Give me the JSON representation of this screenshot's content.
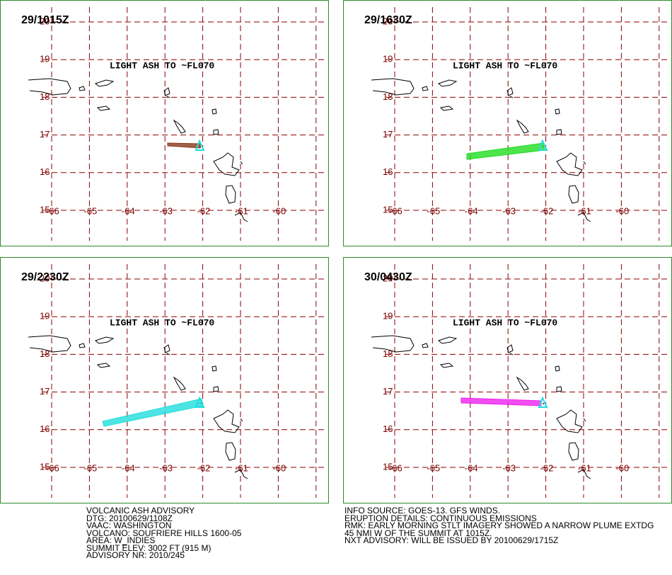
{
  "grid": {
    "lat_labels": [
      "20",
      "19",
      "18",
      "17",
      "16",
      "15"
    ],
    "lon_labels": [
      "-66",
      "-65",
      "-64",
      "-63",
      "-62",
      "-61",
      "-60"
    ]
  },
  "panels": [
    {
      "time": "29/1015Z",
      "annotation": "LIGHT ASH TO ~FL070"
    },
    {
      "time": "29/1630Z",
      "annotation": "LIGHT ASH TO ~FL070"
    },
    {
      "time": "29/2230Z",
      "annotation": "LIGHT ASH TO ~FL070"
    },
    {
      "time": "30/0430Z",
      "annotation": "LIGHT ASH TO ~FL070"
    }
  ],
  "advisory_left": [
    "VOLCANIC ASH ADVISORY",
    "DTG: 20100629/1108Z",
    "VAAC: WASHINGTON",
    "VOLCANO: SOUFRIERE HILLS 1600-05",
    "AREA: W_INDIES",
    "SUMMIT ELEV: 3002 FT (915 M)",
    "ADVISORY NR: 2010/245"
  ],
  "advisory_right": [
    "INFO SOURCE: GOES-13. GFS WINDS.",
    "ERUPTION DETAILS: CONTINUOUS EMISSIONS",
    "RMK: EARLY MORNING STLT IMAGERY SHOWED A NARROW PLUME EXTDG",
    "45 NMI W OF THE SUMMIT AT 1015Z.",
    "NXT ADVISORY: WILL BE ISSUED BY 20100629/1715Z"
  ]
}
